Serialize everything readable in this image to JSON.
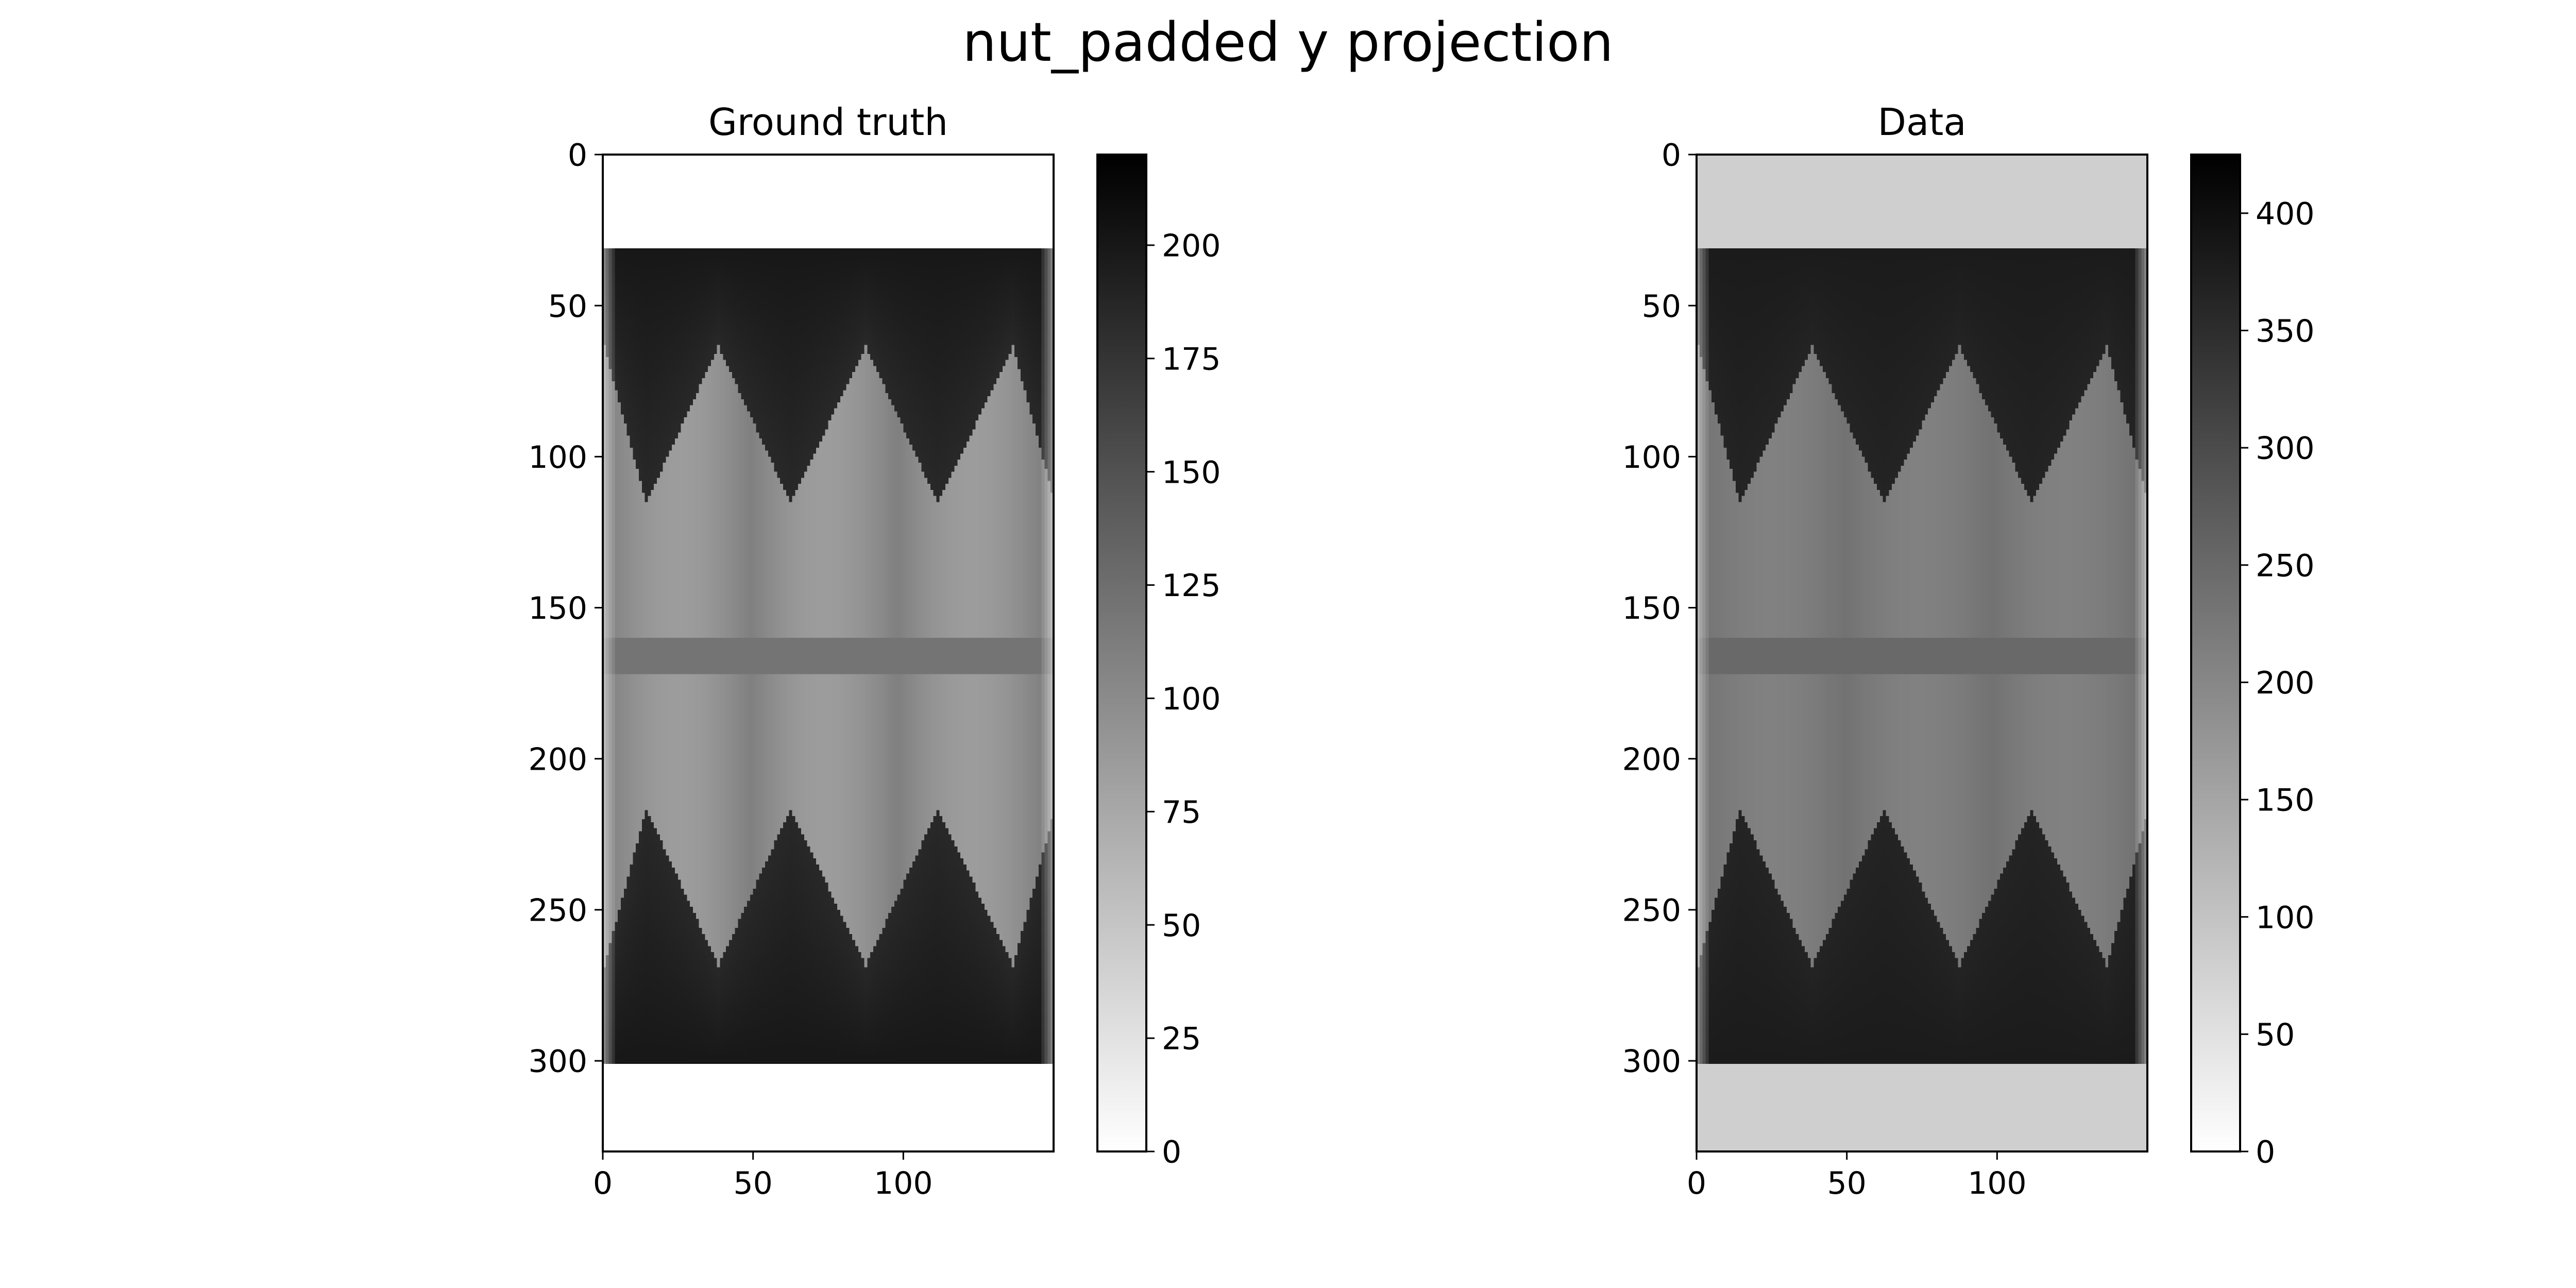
{
  "figure": {
    "suptitle": "nut_padded y projection"
  },
  "chart_data": [
    {
      "type": "heatmap",
      "title": "Ground truth",
      "xlim": [
        0,
        150
      ],
      "ylim": [
        330,
        0
      ],
      "x_ticks": [
        0,
        50,
        100
      ],
      "y_ticks": [
        0,
        50,
        100,
        150,
        200,
        250,
        300
      ],
      "colormap": "gray_r",
      "colorbar": {
        "min": 0,
        "max": 220,
        "ticks": [
          0,
          25,
          50,
          75,
          100,
          125,
          150,
          175,
          200
        ]
      },
      "object_extent_rows": [
        31,
        300
      ],
      "column_profile": [
        {
          "x": 0,
          "v": 95
        },
        {
          "x": 14,
          "v": 200
        },
        {
          "x": 38,
          "v": 95
        },
        {
          "x": 62,
          "v": 200
        },
        {
          "x": 87,
          "v": 95
        },
        {
          "x": 111,
          "v": 200
        },
        {
          "x": 136,
          "v": 95
        },
        {
          "x": 150,
          "v": 200
        }
      ],
      "intensity_levels": {
        "background": 0,
        "outer_band": 200,
        "inner_low": 75,
        "inner_high": 110,
        "midline": 120
      }
    },
    {
      "type": "heatmap",
      "title": "Data",
      "xlim": [
        0,
        150
      ],
      "ylim": [
        330,
        0
      ],
      "x_ticks": [
        0,
        50,
        100
      ],
      "y_ticks": [
        0,
        50,
        100,
        150,
        200,
        250,
        300
      ],
      "colormap": "gray_r",
      "colorbar": {
        "min": 0,
        "max": 425,
        "ticks": [
          0,
          50,
          100,
          150,
          200,
          250,
          300,
          350,
          400
        ]
      },
      "object_extent_rows": [
        31,
        300
      ],
      "column_profile": [
        {
          "x": 0,
          "v": 95
        },
        {
          "x": 14,
          "v": 200
        },
        {
          "x": 38,
          "v": 95
        },
        {
          "x": 62,
          "v": 200
        },
        {
          "x": 87,
          "v": 95
        },
        {
          "x": 111,
          "v": 200
        },
        {
          "x": 136,
          "v": 95
        },
        {
          "x": 150,
          "v": 200
        }
      ],
      "intensity_levels": {
        "background": 80,
        "outer_band": 380,
        "inner_low": 200,
        "inner_high": 235,
        "midline": 250
      }
    }
  ]
}
